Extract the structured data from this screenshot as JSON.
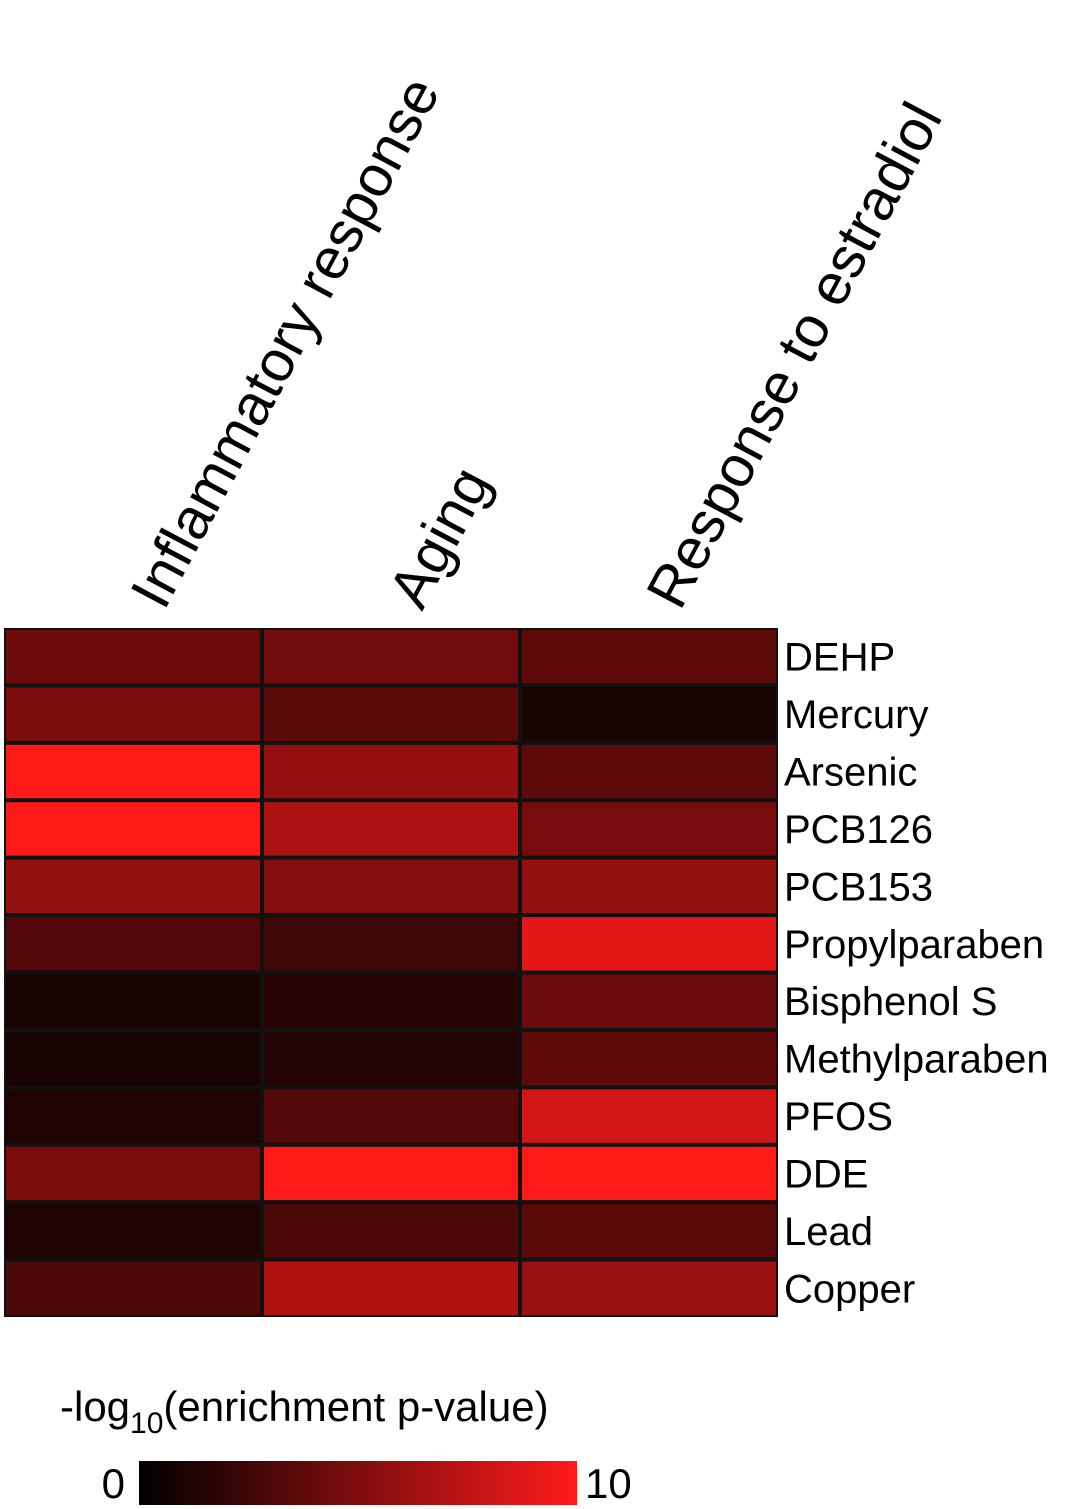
{
  "chart_data": {
    "type": "heatmap",
    "columns": [
      "Inflammatory response",
      "Aging",
      "Response to estradiol"
    ],
    "rows": [
      "DEHP",
      "Mercury",
      "Arsenic",
      "PCB126",
      "PCB153",
      "Propylparaben",
      "Bisphenol S",
      "Methylparaben",
      "PFOS",
      "DDE",
      "Lead",
      "Copper"
    ],
    "values": [
      [
        4.3,
        4.5,
        3.7
      ],
      [
        4.9,
        3.6,
        1.0
      ],
      [
        10.0,
        5.9,
        3.7
      ],
      [
        10.0,
        6.8,
        4.7
      ],
      [
        5.8,
        5.2,
        5.8
      ],
      [
        3.2,
        2.5,
        8.9
      ],
      [
        1.0,
        1.6,
        4.2
      ],
      [
        1.0,
        1.4,
        3.8
      ],
      [
        1.2,
        3.3,
        8.3
      ],
      [
        4.8,
        10.0,
        10.0
      ],
      [
        1.2,
        3.0,
        3.6
      ],
      [
        3.0,
        6.9,
        6.0
      ]
    ],
    "colorbar": {
      "title_prefix": "-log",
      "title_sub": "10",
      "title_suffix": "(enrichment p-value)",
      "min": 0,
      "max": 10,
      "min_label": "0",
      "max_label": "10",
      "colors": [
        "#000000",
        "#ff1a1a"
      ]
    },
    "grid_color": "#111111"
  }
}
